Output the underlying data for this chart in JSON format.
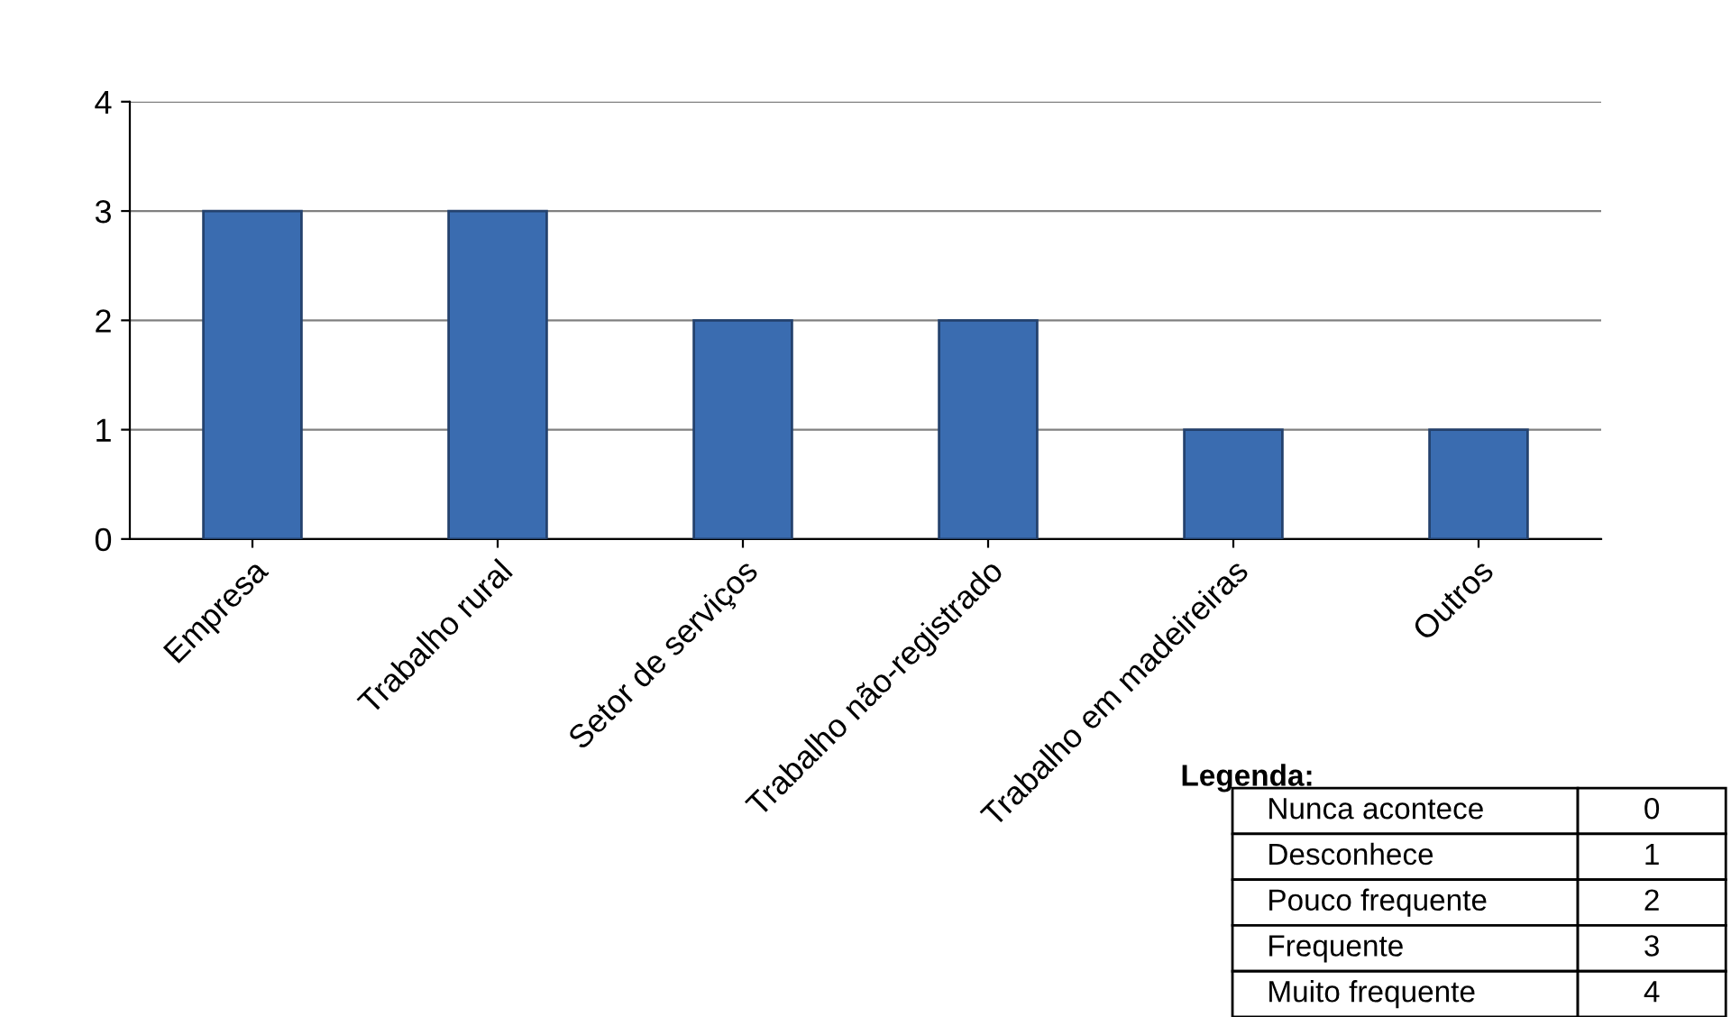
{
  "chart_data": {
    "type": "bar",
    "categories": [
      "Empresa",
      "Trabalho rural",
      "Setor de serviços",
      "Trabalho não-registrado",
      "Trabalho em madeireiras",
      "Outros"
    ],
    "values": [
      3,
      3,
      2,
      2,
      1,
      1
    ],
    "color": "#3a6cb0",
    "ylim": [
      0,
      4
    ],
    "yticks": [
      0,
      1,
      2,
      3,
      4
    ],
    "grid": "y",
    "annotations": [
      "Legenda:",
      "Nunca acontece",
      "0",
      "Desconhece",
      "1",
      "Pouco frequente",
      "2",
      "Frequente",
      "3",
      "Muito frequente",
      "4"
    ]
  }
}
